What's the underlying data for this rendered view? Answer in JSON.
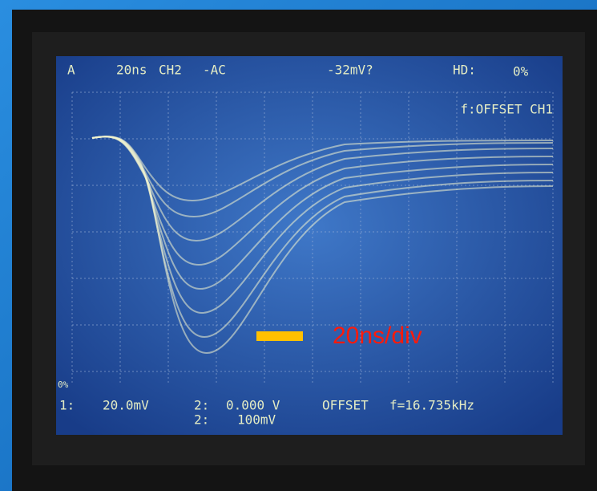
{
  "screen": {
    "top_line": [
      "A",
      "20ns",
      "CH2",
      "-AC",
      "-32mV?",
      "HD:",
      "0%"
    ],
    "second_line": "f:OFFSET CH1",
    "side_label": "0%",
    "bottom_line": [
      "1:",
      "20.0mV",
      "2:",
      "0.000 V",
      "2:",
      "100mV",
      "OFFSET",
      "f=16.735kHz"
    ]
  },
  "annotation": "20ns/div"
}
